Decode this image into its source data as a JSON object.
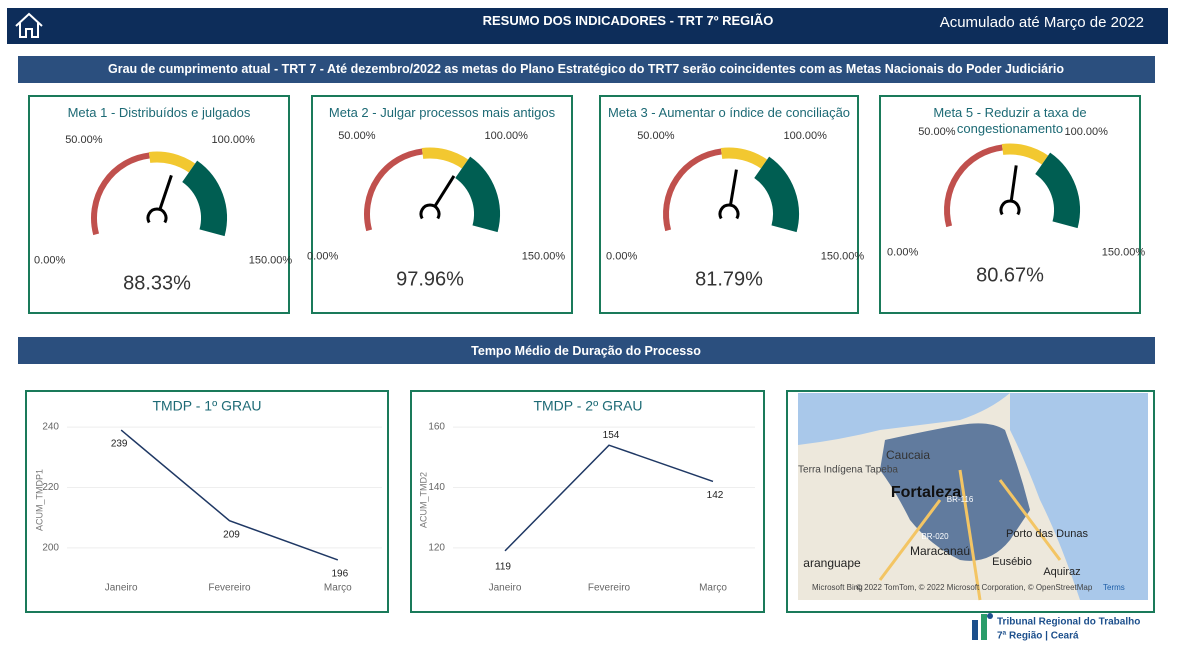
{
  "header": {
    "title": "RESUMO DOS INDICADORES - TRT 7º REGIÃO",
    "period": "Acumulado até Março de 2022"
  },
  "section1": {
    "title": "Grau de cumprimento atual - TRT 7 - Até dezembro/2022 as metas do Plano Estratégico do TRT7 serão coincidentes com as Metas Nacionais do Poder Judiciário"
  },
  "gauge_bands": [
    {
      "from": 0,
      "to": 70,
      "color": "#c0504d"
    },
    {
      "from": 70,
      "to": 100,
      "color": "#f2c830"
    },
    {
      "from": 100,
      "to": 150,
      "color": "#005e52"
    }
  ],
  "gauges": [
    {
      "title": "Meta 1 - Distribuídos e julgados",
      "value": 88.33,
      "value_label": "88.33%",
      "range": [
        0,
        150
      ],
      "ticks": [
        {
          "value": 0,
          "label": "0.00%"
        },
        {
          "value": 50,
          "label": "50.00%"
        },
        {
          "value": 100,
          "label": "100.00%"
        },
        {
          "value": 150,
          "label": "150.00%"
        }
      ]
    },
    {
      "title": "Meta 2 - Julgar processos mais antigos",
      "value": 97.96,
      "value_label": "97.96%",
      "range": [
        0,
        150
      ],
      "ticks": [
        {
          "value": 0,
          "label": "0.00%"
        },
        {
          "value": 50,
          "label": "50.00%"
        },
        {
          "value": 100,
          "label": "100.00%"
        },
        {
          "value": 150,
          "label": "150.00%"
        }
      ]
    },
    {
      "title": "Meta 3 - Aumentar o índice de conciliação",
      "value": 81.79,
      "value_label": "81.79%",
      "range": [
        0,
        150
      ],
      "ticks": [
        {
          "value": 0,
          "label": "0.00%"
        },
        {
          "value": 50,
          "label": "50.00%"
        },
        {
          "value": 100,
          "label": "100.00%"
        },
        {
          "value": 150,
          "label": "150.00%"
        }
      ]
    },
    {
      "title": "Meta 5 - Reduzir a taxa de congestionamento",
      "value": 80.67,
      "value_label": "80.67%",
      "range": [
        0,
        150
      ],
      "ticks": [
        {
          "value": 0,
          "label": "0.00%"
        },
        {
          "value": 50,
          "label": "50.00%"
        },
        {
          "value": 100,
          "label": "100.00%"
        },
        {
          "value": 150,
          "label": "150.00%"
        }
      ]
    }
  ],
  "section2": {
    "title": "Tempo Médio de Duração do Processo"
  },
  "line_charts": [
    {
      "type": "line",
      "title": "TMDP - 1º GRAU",
      "y_label": "ACUM_TMDP1",
      "categories": [
        "Janeiro",
        "Fevereiro",
        "Março"
      ],
      "series": [
        {
          "name": "ACUM_TMDP1",
          "color": "#1f3864",
          "values": [
            239,
            209,
            196
          ]
        }
      ],
      "ylim": [
        191,
        244
      ],
      "yticks": [
        200,
        220,
        240
      ],
      "grid": true
    },
    {
      "type": "line",
      "title": "TMDP - 2º GRAU",
      "y_label": "ACUM_TMD2",
      "categories": [
        "Janeiro",
        "Fevereiro",
        "Março"
      ],
      "series": [
        {
          "name": "ACUM_TMD2",
          "color": "#1f3864",
          "values": [
            119,
            154,
            142
          ]
        }
      ],
      "ylim": [
        111,
        164
      ],
      "yticks": [
        120,
        140,
        160
      ],
      "grid": true
    }
  ],
  "map": {
    "labels": [
      "Caucaia",
      "Terra Indígena Tapeba",
      "Fortaleza",
      "BR-116",
      "BR-020",
      "Porto das Dunas",
      "Maracanaú",
      "aranguape",
      "Eusébio",
      "Aquiraz"
    ],
    "bing": "Microsoft Bing",
    "attribution": "© 2022 TomTom, © 2022 Microsoft Corporation, © OpenStreetMap",
    "terms": "Terms"
  },
  "logo": {
    "line1": "Tribunal Regional do Trabalho",
    "line2": "7ª Região | Ceará"
  }
}
